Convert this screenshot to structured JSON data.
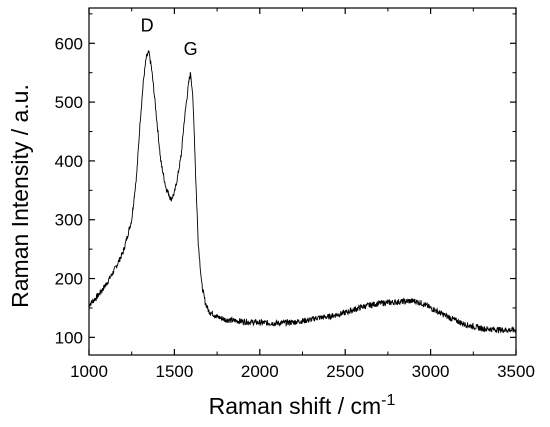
{
  "chart_data": {
    "type": "line",
    "title": "",
    "xlabel": "Raman shift / cm",
    "xlabel_superscript": "-1",
    "ylabel": "Raman Intensity / a.u.",
    "xlim": [
      1000,
      3500
    ],
    "ylim": [
      70,
      660
    ],
    "x_ticks": [
      1000,
      1500,
      2000,
      2500,
      3000,
      3500
    ],
    "y_ticks": [
      100,
      200,
      300,
      400,
      500,
      600
    ],
    "grid": false,
    "line_color": "#000000",
    "annotations": [
      {
        "text": "D",
        "x": 1340,
        "y": 620
      },
      {
        "text": "G",
        "x": 1595,
        "y": 580
      }
    ],
    "series": [
      {
        "x": [
          1000,
          1050,
          1100,
          1150,
          1200,
          1250,
          1280,
          1300,
          1320,
          1335,
          1350,
          1365,
          1380,
          1400,
          1420,
          1450,
          1480,
          1500,
          1520,
          1540,
          1555,
          1570,
          1585,
          1595,
          1605,
          1615,
          1625,
          1640,
          1660,
          1680,
          1700,
          1750,
          1800,
          1900,
          2000,
          2100,
          2200,
          2300,
          2330,
          2400,
          2500,
          2600,
          2700,
          2800,
          2900,
          2950,
          3000,
          3100,
          3200,
          3300,
          3400,
          3500
        ],
        "values": [
          155,
          170,
          190,
          215,
          245,
          300,
          380,
          470,
          540,
          575,
          585,
          560,
          520,
          460,
          400,
          355,
          335,
          345,
          375,
          410,
          460,
          500,
          535,
          550,
          520,
          460,
          370,
          260,
          190,
          160,
          145,
          135,
          130,
          127,
          125,
          124,
          126,
          130,
          133,
          135,
          142,
          152,
          158,
          160,
          162,
          158,
          150,
          135,
          122,
          115,
          113,
          112
        ]
      }
    ]
  }
}
